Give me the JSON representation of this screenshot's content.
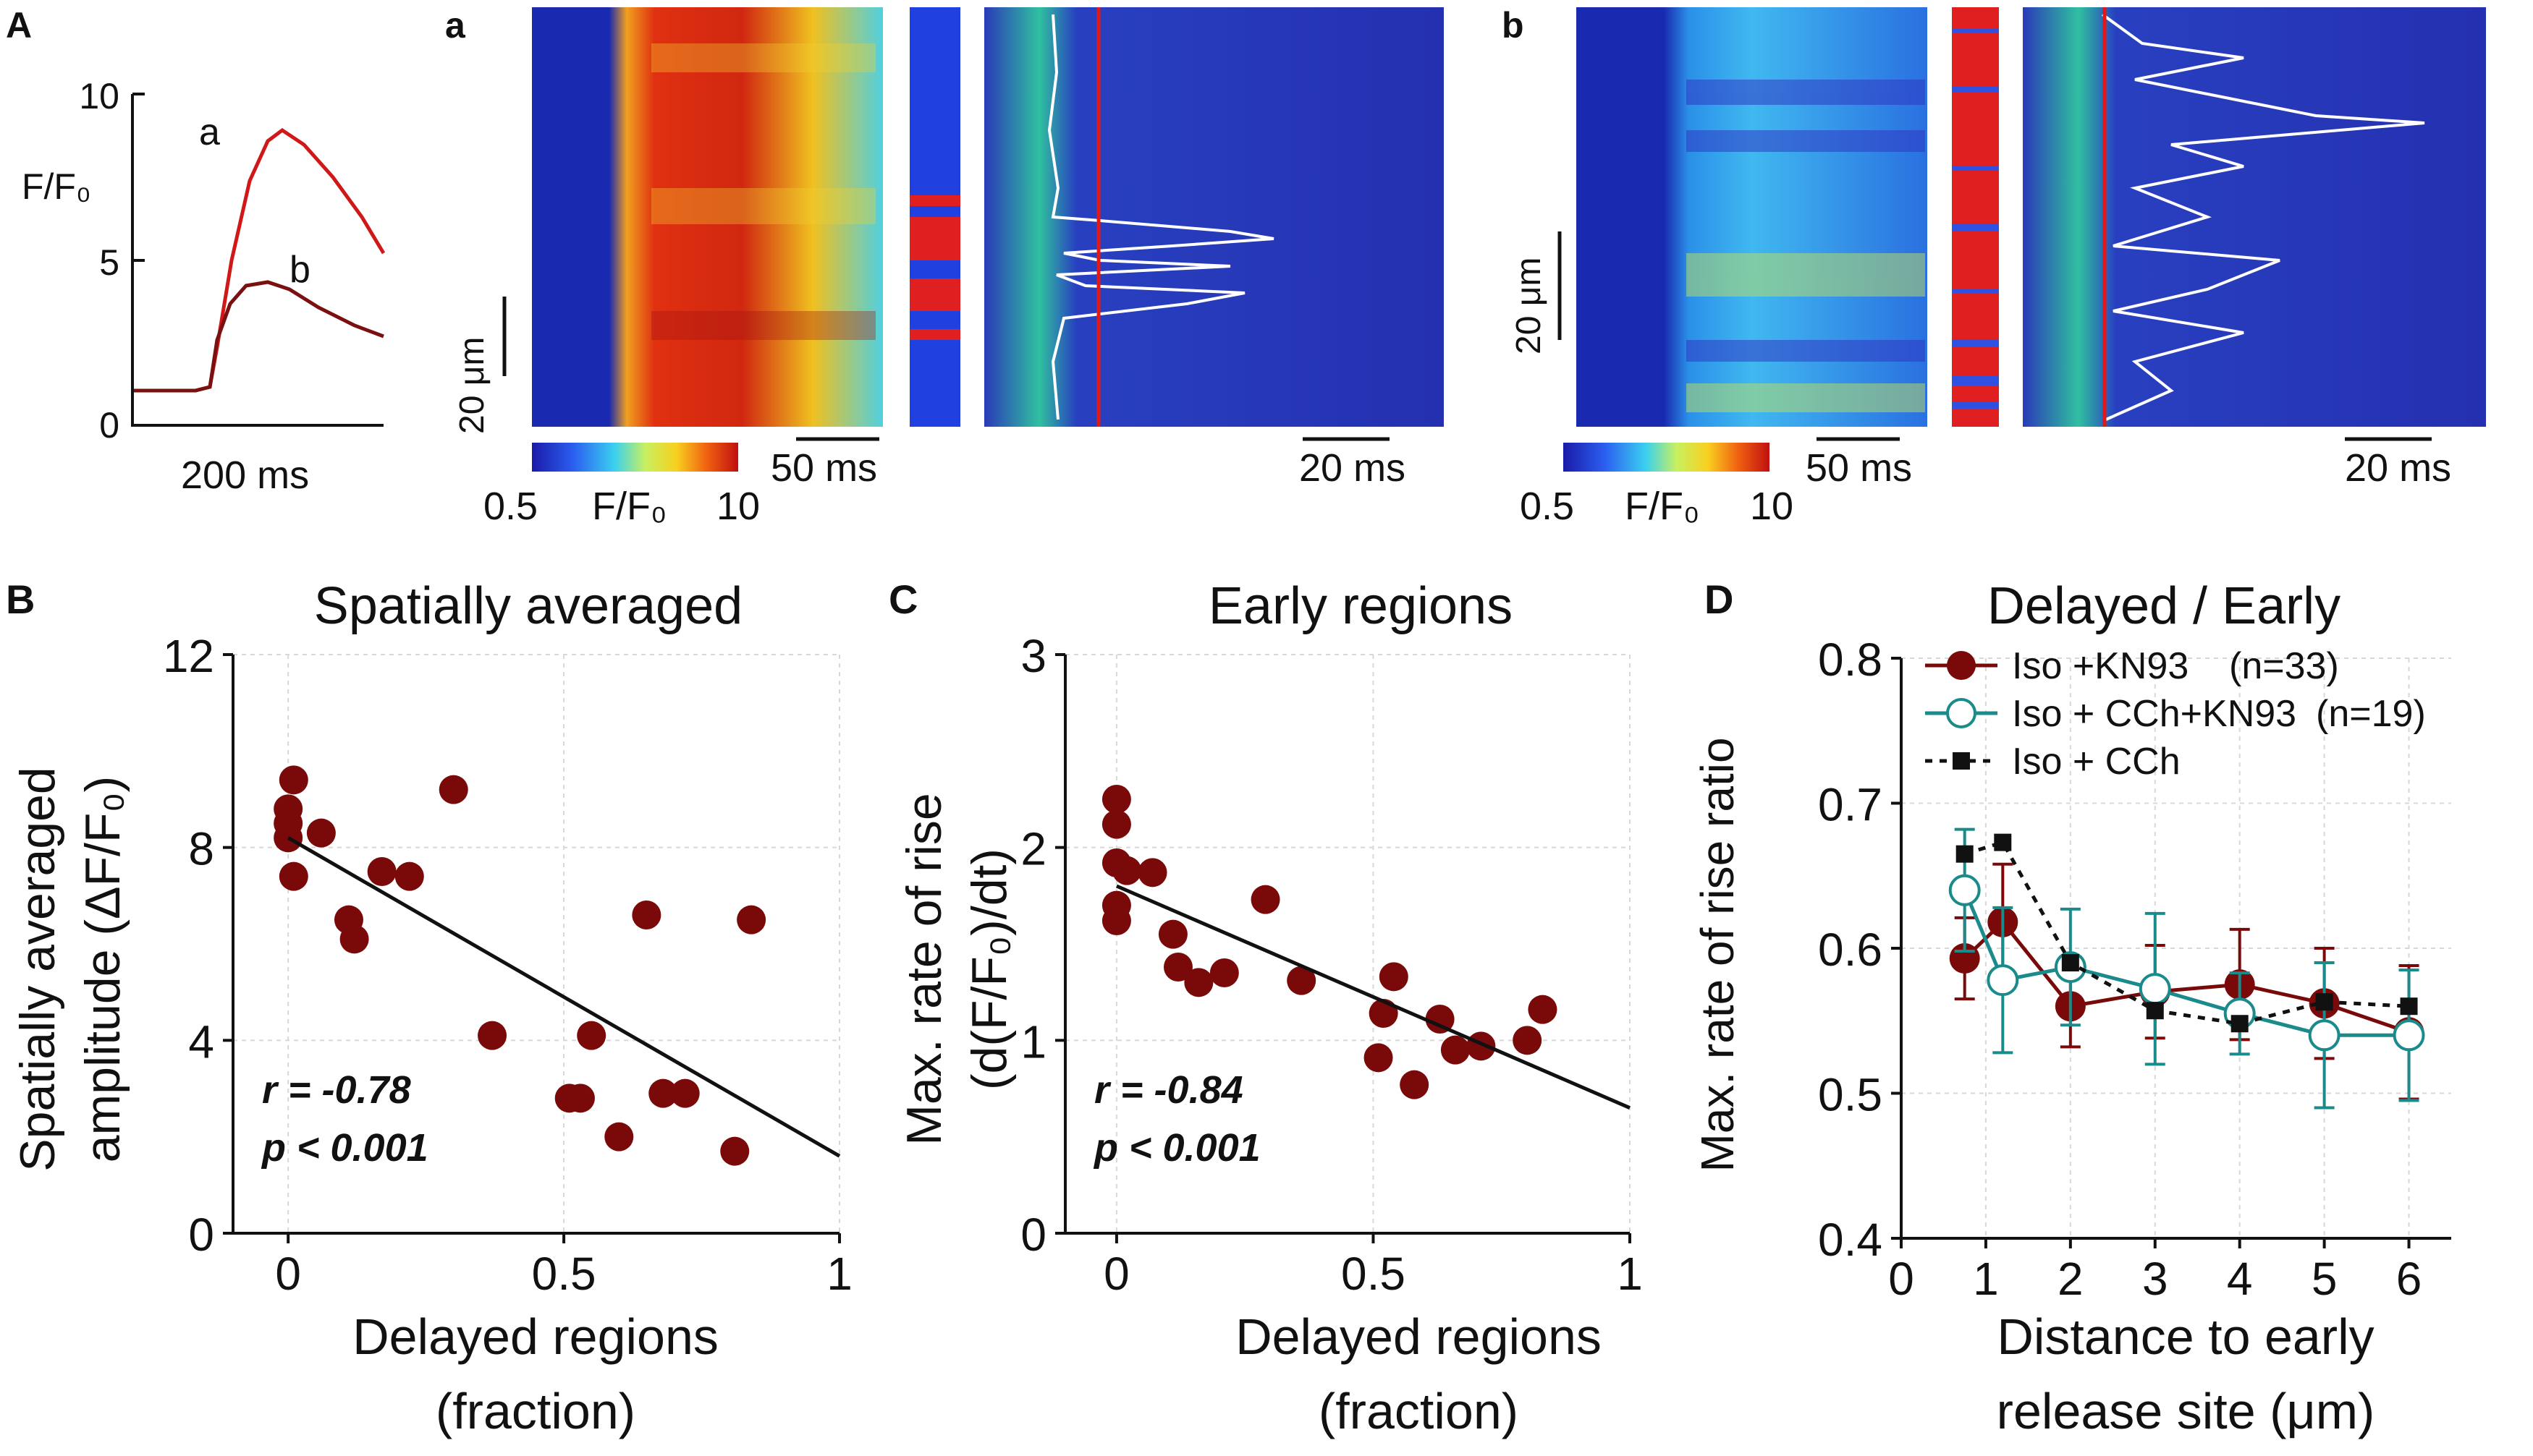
{
  "colors": {
    "dark_red": "#7a0a0a",
    "bright_red": "#d01818",
    "teal": "#1a8a8a",
    "black": "#111111",
    "grid": "#d8d8d8"
  },
  "panel_A": {
    "letter": "A",
    "ylabel": "F/F₀",
    "yticks": [
      "10",
      "5",
      "0"
    ],
    "scalebar": "200 ms",
    "trace_labels": [
      "a",
      "b"
    ]
  },
  "panel_a": {
    "letter": "a",
    "scale_y": "20 μm",
    "scale_x1": "50 ms",
    "scale_x2": "20 ms",
    "colorbar_min": "0.5",
    "colorbar_label": "F/F₀",
    "colorbar_max": "10"
  },
  "panel_b": {
    "letter": "b",
    "scale_y": "20 μm",
    "scale_x1": "50 ms",
    "scale_x2": "20 ms",
    "colorbar_min": "0.5",
    "colorbar_label": "F/F₀",
    "colorbar_max": "10"
  },
  "chart_data": [
    {
      "panel": "B",
      "type": "scatter",
      "title": "Spatially averaged",
      "xlabel_lines": [
        "Delayed regions",
        "(fraction)"
      ],
      "ylabel_lines": [
        "Spatially averaged",
        "amplitude (ΔF/F₀)"
      ],
      "xlim": [
        -0.1,
        1
      ],
      "ylim": [
        0,
        12
      ],
      "xticks": [
        "0",
        "0.5",
        "1"
      ],
      "yticks": [
        "0",
        "4",
        "8",
        "12"
      ],
      "points": [
        [
          0,
          8.8
        ],
        [
          0,
          8.5
        ],
        [
          0,
          8.2
        ],
        [
          0.01,
          7.4
        ],
        [
          0.01,
          9.4
        ],
        [
          0.06,
          8.3
        ],
        [
          0.11,
          6.5
        ],
        [
          0.12,
          6.1
        ],
        [
          0.17,
          7.5
        ],
        [
          0.22,
          7.4
        ],
        [
          0.3,
          9.2
        ],
        [
          0.37,
          4.1
        ],
        [
          0.51,
          2.8
        ],
        [
          0.53,
          2.8
        ],
        [
          0.55,
          4.1
        ],
        [
          0.6,
          2.0
        ],
        [
          0.65,
          6.6
        ],
        [
          0.68,
          2.9
        ],
        [
          0.72,
          2.9
        ],
        [
          0.81,
          1.7
        ],
        [
          0.84,
          6.5
        ]
      ],
      "fit": [
        [
          0,
          8.2
        ],
        [
          1,
          1.6
        ]
      ],
      "stats": [
        "r = -0.78",
        "p < 0.001"
      ]
    },
    {
      "panel": "C",
      "type": "scatter",
      "title": "Early regions",
      "xlabel_lines": [
        "Delayed regions",
        "(fraction)"
      ],
      "ylabel_lines": [
        "Max. rate of rise",
        "(d(F/F₀)/dt)"
      ],
      "xlim": [
        -0.1,
        1
      ],
      "ylim": [
        0,
        3
      ],
      "xticks": [
        "0",
        "0.5",
        "1"
      ],
      "yticks": [
        "0",
        "1",
        "2",
        "3"
      ],
      "points": [
        [
          0,
          2.25
        ],
        [
          0,
          2.12
        ],
        [
          0,
          1.92
        ],
        [
          0,
          1.7
        ],
        [
          0,
          1.62
        ],
        [
          0.02,
          1.88
        ],
        [
          0.07,
          1.87
        ],
        [
          0.11,
          1.55
        ],
        [
          0.12,
          1.38
        ],
        [
          0.16,
          1.3
        ],
        [
          0.21,
          1.35
        ],
        [
          0.29,
          1.73
        ],
        [
          0.36,
          1.31
        ],
        [
          0.51,
          0.91
        ],
        [
          0.52,
          1.14
        ],
        [
          0.54,
          1.33
        ],
        [
          0.58,
          0.77
        ],
        [
          0.63,
          1.11
        ],
        [
          0.66,
          0.95
        ],
        [
          0.71,
          0.97
        ],
        [
          0.8,
          1.0
        ],
        [
          0.83,
          1.16
        ]
      ],
      "fit": [
        [
          0,
          1.8
        ],
        [
          1,
          0.65
        ]
      ],
      "stats": [
        "r = -0.84",
        "p < 0.001"
      ]
    },
    {
      "panel": "D",
      "type": "line",
      "title": "Delayed / Early",
      "xlabel_lines": [
        "Distance to early",
        "release site (μm)"
      ],
      "ylabel": "Max. rate of rise ratio",
      "xlim": [
        0,
        6.5
      ],
      "ylim": [
        0.4,
        0.8
      ],
      "xticks": [
        "0",
        "1",
        "2",
        "3",
        "4",
        "5",
        "6"
      ],
      "yticks": [
        "0.4",
        "0.5",
        "0.6",
        "0.7",
        "0.8"
      ],
      "series": [
        {
          "name": "Iso +KN93",
          "n_label": "(n=33)",
          "marker": "filled-circle",
          "x": [
            0.75,
            1.2,
            2,
            3,
            4,
            5,
            6
          ],
          "y": [
            0.593,
            0.618,
            0.56,
            0.57,
            0.575,
            0.562,
            0.542
          ],
          "err": [
            0.028,
            0.04,
            0.028,
            0.032,
            0.038,
            0.038,
            0.046
          ]
        },
        {
          "name": "Iso + CCh+KN93",
          "n_label": "(n=19)",
          "marker": "open-circle",
          "x": [
            0.75,
            1.2,
            2,
            3,
            4,
            5,
            6
          ],
          "y": [
            0.64,
            0.578,
            0.587,
            0.572,
            0.555,
            0.54,
            0.54
          ],
          "err": [
            0.042,
            0.05,
            0.04,
            0.052,
            0.028,
            0.05,
            0.045
          ]
        },
        {
          "name": "Iso + CCh",
          "n_label": "",
          "marker": "filled-square",
          "x": [
            0.75,
            1.2,
            2,
            3,
            4,
            5,
            6
          ],
          "y": [
            0.665,
            0.673,
            0.59,
            0.557,
            0.548,
            0.563,
            0.56
          ],
          "err": [
            0,
            0,
            0,
            0,
            0,
            0,
            0
          ]
        }
      ]
    }
  ]
}
